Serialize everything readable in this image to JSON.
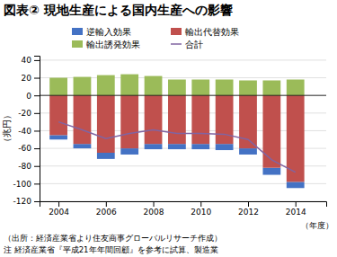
{
  "chart_data": {
    "type": "bar",
    "stacked": true,
    "title": "図表②  現地生産による国内生産への影響",
    "ylabel": "（兆円）",
    "xlabel": "（年度）",
    "annotations": [
      "（出所：経済産業省より住友商事グローバルリサーチ作成）",
      "注  経済産業省『平成21年年間回顧』を参考に試算、製造業"
    ],
    "x": [
      2004,
      2005,
      2006,
      2007,
      2008,
      2009,
      2010,
      2011,
      2012,
      2013,
      2014
    ],
    "series": [
      {
        "name": "逆輸入効果",
        "type": "bar",
        "color": "#4472C4",
        "values": [
          -5,
          -5,
          -7,
          -7,
          -6,
          -6,
          -6,
          -7,
          -7,
          -8,
          -7
        ]
      },
      {
        "name": "輸出代替効果",
        "type": "bar",
        "color": "#C0504D",
        "values": [
          -45,
          -55,
          -65,
          -60,
          -55,
          -55,
          -55,
          -55,
          -60,
          -82,
          -98
        ]
      },
      {
        "name": "輸出誘発効果",
        "type": "bar",
        "color": "#9BBB59",
        "values": [
          20,
          21,
          23,
          24,
          22,
          18,
          18,
          18,
          17,
          17,
          18
        ]
      },
      {
        "name": "合計",
        "type": "line",
        "color": "#8064A2",
        "values": [
          -30,
          -39,
          -49,
          -43,
          -39,
          -43,
          -43,
          -44,
          -50,
          -73,
          -87
        ]
      }
    ],
    "xlim": [
      2003.2,
      2015.3
    ],
    "xticks": [
      2004,
      2006,
      2008,
      2010,
      2012,
      2014
    ],
    "ylim": [
      -120,
      45
    ],
    "yticks": [
      -120,
      -100,
      -80,
      -60,
      -40,
      -20,
      0,
      20,
      40
    ],
    "grid": true,
    "legend": "top"
  }
}
